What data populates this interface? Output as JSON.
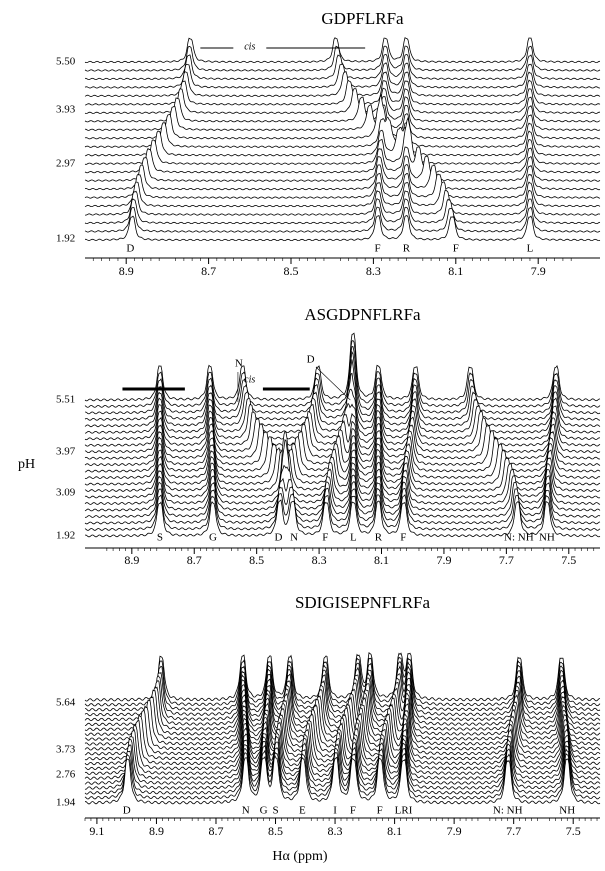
{
  "panels": [
    {
      "title": "GDPFLRFa",
      "xlim": [
        9.0,
        7.75
      ],
      "xticks": [
        8.9,
        8.7,
        8.5,
        8.3,
        8.1,
        7.9
      ],
      "ph_labels": [
        "5.50",
        "3.93",
        "2.97",
        "1.92"
      ],
      "peaks": [
        {
          "label": "D",
          "ppm_low": 8.89,
          "ppm_high": 8.74
        },
        {
          "label": "F",
          "ppm_low": 8.29,
          "ppm_high": 8.27
        },
        {
          "label": "R",
          "ppm_low": 8.22,
          "ppm_high": 8.22
        },
        {
          "label": "F",
          "ppm_low": 8.1,
          "ppm_high": 8.4
        },
        {
          "label": "L",
          "ppm_low": 7.92,
          "ppm_high": 7.92
        }
      ],
      "annotations": [
        "cis"
      ]
    },
    {
      "title": "ASGDPNFLRFa",
      "xlim": [
        9.05,
        7.4
      ],
      "xticks": [
        8.9,
        8.7,
        8.5,
        8.3,
        8.1,
        7.9,
        7.7,
        7.5
      ],
      "ph_labels": [
        "5.51",
        "3.97",
        "3.09",
        "1.92"
      ],
      "peaks": [
        {
          "label": "S",
          "ppm_low": 8.81,
          "ppm_high": 8.81
        },
        {
          "label": "G",
          "ppm_low": 8.64,
          "ppm_high": 8.65
        },
        {
          "label": "D",
          "ppm_low": 8.43,
          "ppm_high": 8.3
        },
        {
          "label": "N",
          "ppm_low": 8.38,
          "ppm_high": 8.55
        },
        {
          "label": "F",
          "ppm_low": 8.28,
          "ppm_high": 8.19
        },
        {
          "label": "L",
          "ppm_low": 8.19,
          "ppm_high": 8.19
        },
        {
          "label": "R",
          "ppm_low": 8.11,
          "ppm_high": 8.11
        },
        {
          "label": "F",
          "ppm_low": 8.03,
          "ppm_high": 7.99
        },
        {
          "label": "N: NH",
          "ppm_low": 7.66,
          "ppm_high": 7.82
        },
        {
          "label": "NH",
          "ppm_low": 7.57,
          "ppm_high": 7.54
        }
      ],
      "annotations": [
        "N",
        "cis",
        "D"
      ]
    },
    {
      "title": "SDIGISEPNFLRFa",
      "xlim": [
        9.14,
        7.41
      ],
      "xticks": [
        9.1,
        8.9,
        8.7,
        8.5,
        8.3,
        8.1,
        7.9,
        7.7,
        7.5
      ],
      "ph_labels": [
        "5.64",
        "3.73",
        "2.76",
        "1.94"
      ],
      "peaks": [
        {
          "label": "D",
          "ppm_low": 9.0,
          "ppm_high": 8.88
        },
        {
          "label": "N",
          "ppm_low": 8.6,
          "ppm_high": 8.61
        },
        {
          "label": "G",
          "ppm_low": 8.54,
          "ppm_high": 8.52
        },
        {
          "label": "S",
          "ppm_low": 8.5,
          "ppm_high": 8.45
        },
        {
          "label": "E",
          "ppm_low": 8.41,
          "ppm_high": 8.33
        },
        {
          "label": "I",
          "ppm_low": 8.3,
          "ppm_high": 8.22
        },
        {
          "label": "F",
          "ppm_low": 8.24,
          "ppm_high": 8.18
        },
        {
          "label": "F",
          "ppm_low": 8.15,
          "ppm_high": 8.08
        },
        {
          "label": "LRI",
          "ppm_low": 8.07,
          "ppm_high": 8.05
        },
        {
          "label": "N: NH",
          "ppm_low": 7.72,
          "ppm_high": 7.68
        },
        {
          "label": "NH",
          "ppm_low": 7.52,
          "ppm_high": 7.54
        }
      ],
      "annotations": []
    }
  ],
  "y_axis_label": "pH",
  "x_axis_label": "Hα (ppm)"
}
